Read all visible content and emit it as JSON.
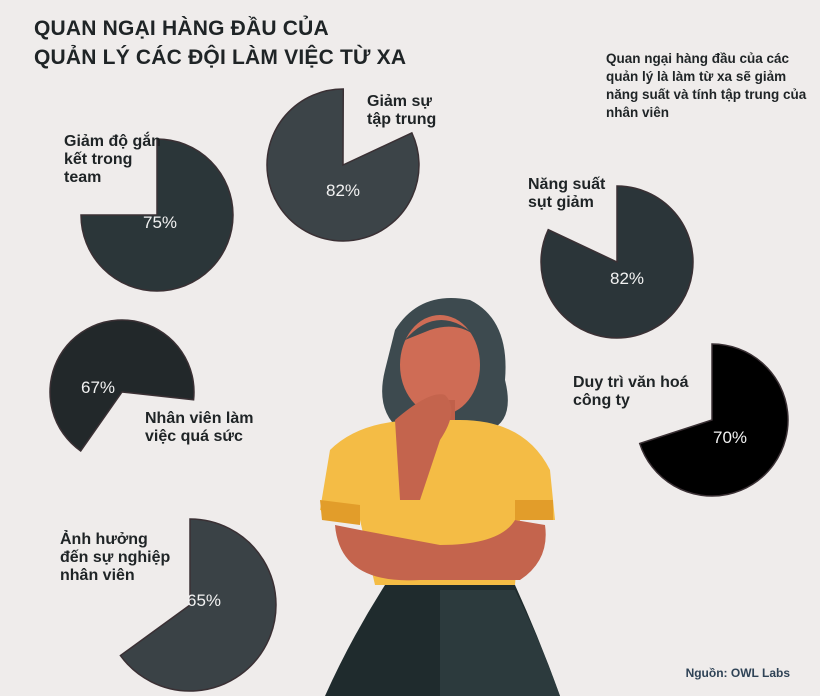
{
  "title_line1": "QUAN NGẠI HÀNG ĐẦU CỦA",
  "title_line2": "QUẢN LÝ CÁC ĐỘI LÀM VIỆC TỪ XA",
  "note": "Quan ngại hàng đầu của các quản lý là làm từ xa sẽ giảm năng suất và tính tập trung của nhân viên",
  "source": "Nguồn: OWL Labs",
  "chart_data": {
    "type": "pie",
    "items": [
      {
        "label": "Giảm độ gắn kết trong team",
        "value": 75,
        "value_label": "75%",
        "color": "#2b3639"
      },
      {
        "label": "Giảm sự tập trung",
        "value": 82,
        "value_label": "82%",
        "color": "#3c4448"
      },
      {
        "label": "Năng suất sụt giảm",
        "value": 82,
        "value_label": "82%",
        "color": "#2b3539"
      },
      {
        "label": "Nhân viên làm việc quá sức",
        "value": 67,
        "value_label": "67%",
        "color": "#22282a"
      },
      {
        "label": "Duy trì văn hoá công ty",
        "value": 70,
        "value_label": "70%",
        "color": "#000000"
      },
      {
        "label": "Ảnh hưởng đến sự nghiệp nhân viên",
        "value": 65,
        "value_label": "65%",
        "color": "#3a4246"
      }
    ]
  }
}
